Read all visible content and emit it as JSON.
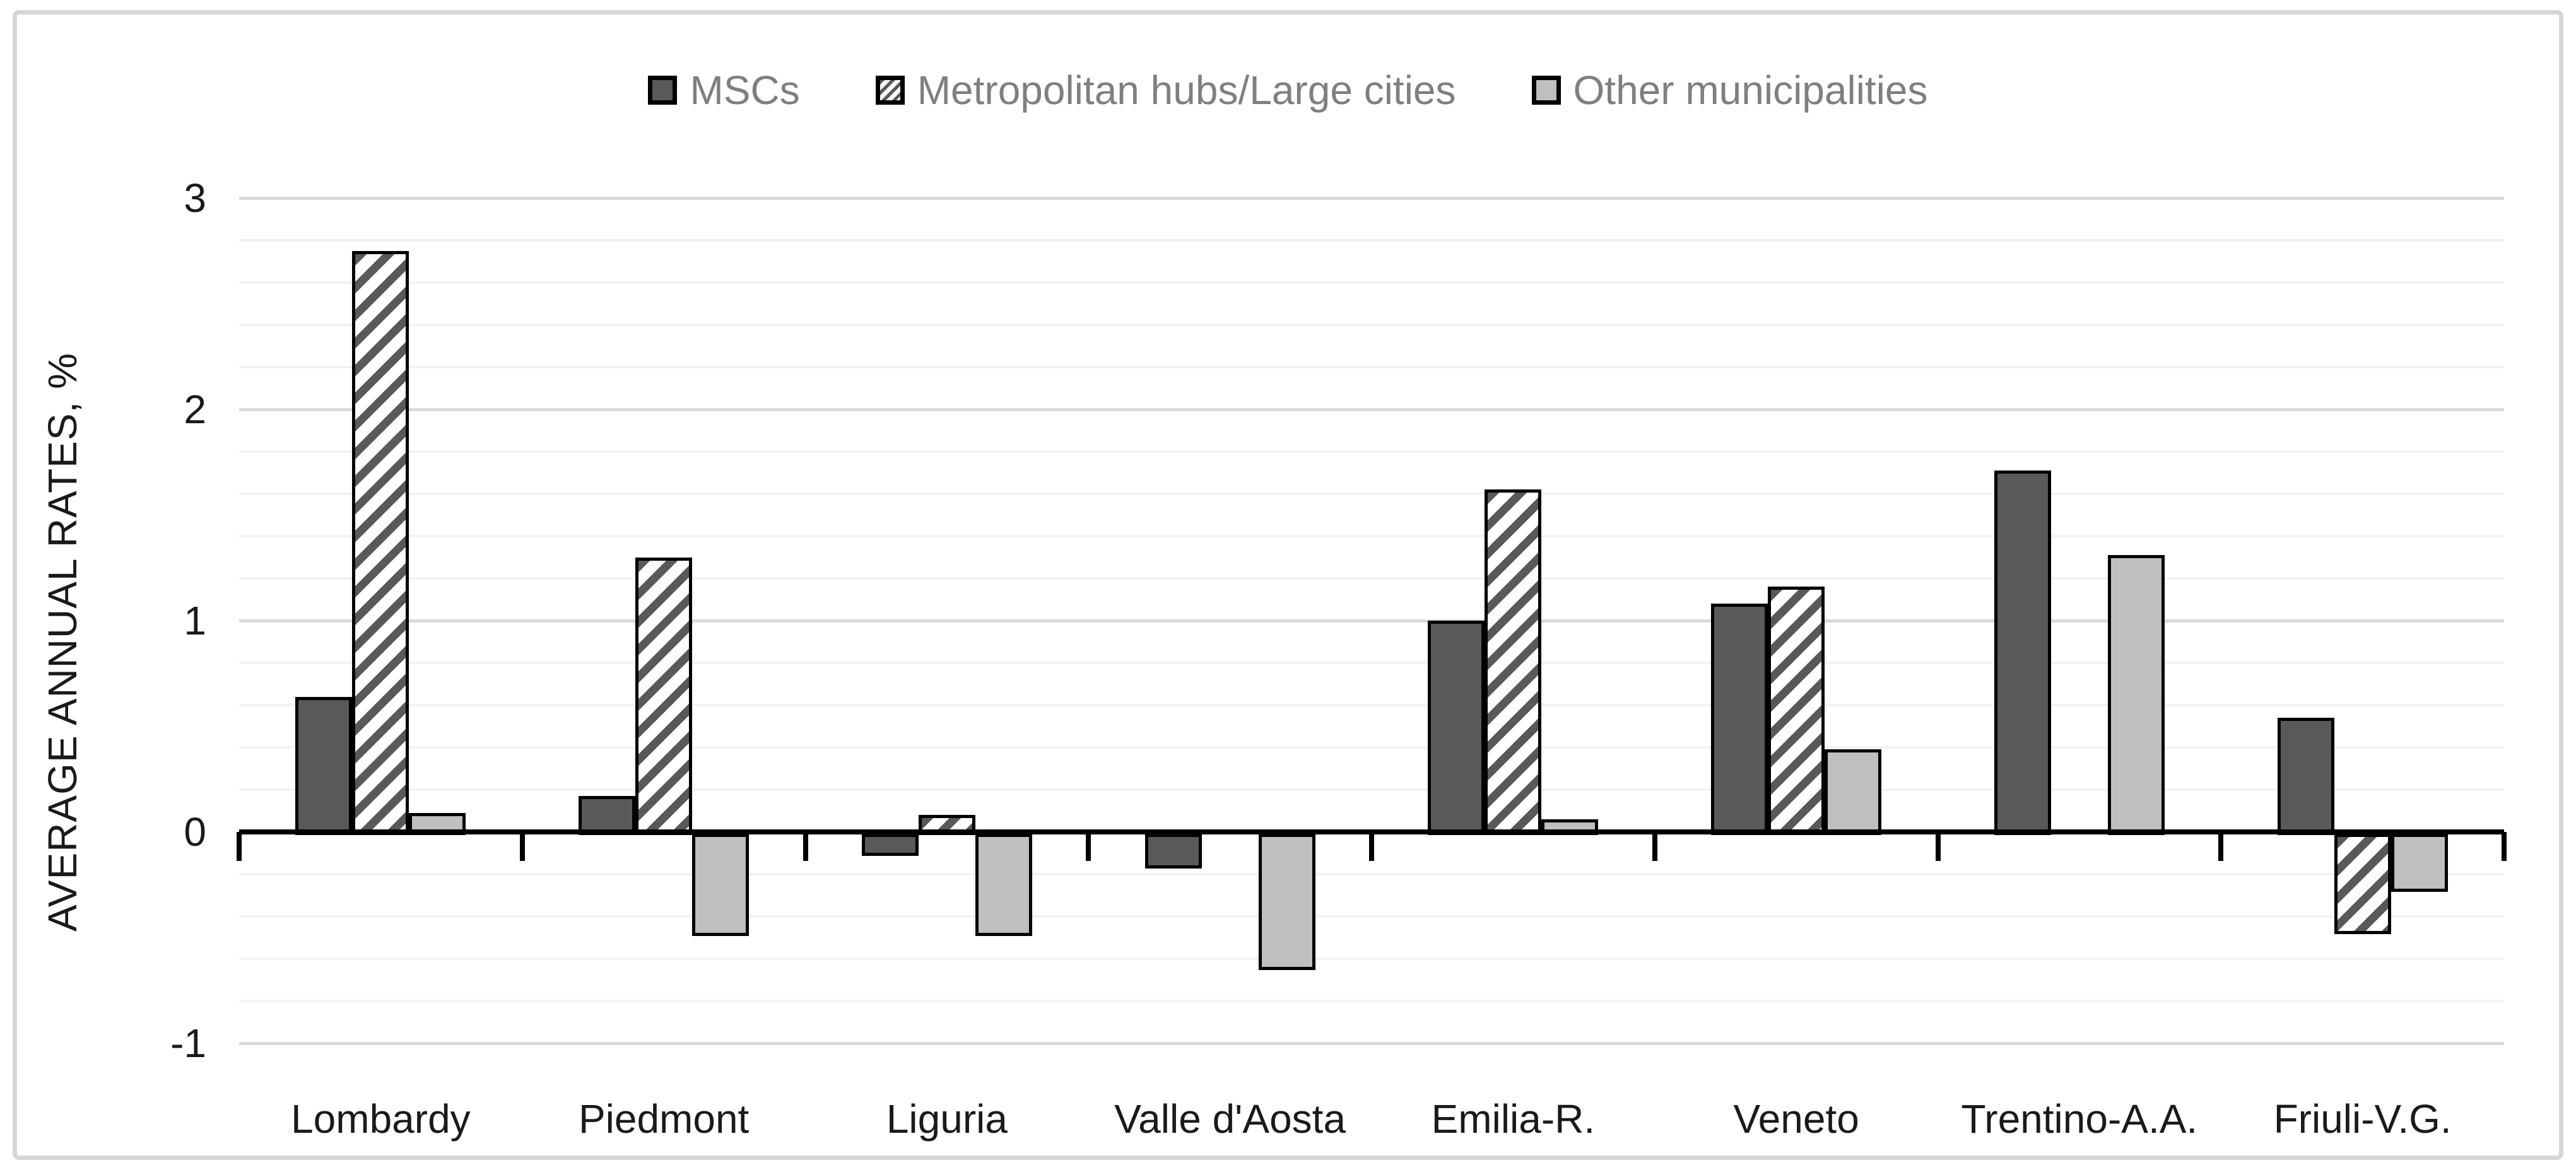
{
  "figure": {
    "background": "#ffffff",
    "border_color": "#d6d6d6"
  },
  "legend": {
    "text_color": "#7f7f7f",
    "items": [
      {
        "label": "MSCs",
        "swatch": "solid-dark",
        "color": "#595959"
      },
      {
        "label": "Metropolitan hubs/Large cities",
        "swatch": "hatch",
        "color": "#595959"
      },
      {
        "label": "Other municipalities",
        "swatch": "solid-light",
        "color": "#bfbfbf"
      }
    ]
  },
  "y_axis": {
    "title": "AVERAGE ANNUAL RATES, %",
    "tick_labels": [
      "3",
      "2",
      "1",
      "0",
      "-1"
    ],
    "tick_values": [
      3,
      2,
      1,
      0,
      -1
    ],
    "minor_step": 0.2,
    "range_min": -1.2,
    "range_max": 3.2,
    "minor_grid_color": "#f2f2f2",
    "major_grid_color": "#dadada"
  },
  "chart_data": {
    "type": "bar",
    "title": "",
    "xlabel": "",
    "ylabel": "AVERAGE ANNUAL RATES, %",
    "ylim": [
      -1.2,
      3.2
    ],
    "grid": "horizontal, minor every 0.2, major at integers",
    "legend_position": "top-center",
    "categories": [
      "Lombardy",
      "Piedmont",
      "Liguria",
      "Valle d'Aosta",
      "Emilia-R.",
      "Veneto",
      "Trentino-A.A.",
      "Friuli-V.G."
    ],
    "series": [
      {
        "name": "MSCs",
        "pattern": "solid",
        "fill": "#595959",
        "values": [
          0.64,
          0.17,
          -0.09,
          -0.15,
          1.0,
          1.08,
          1.71,
          0.54
        ]
      },
      {
        "name": "Metropolitan hubs/Large cities",
        "pattern": "diagonal-hatch",
        "fill": "#ffffff",
        "hatch_color": "#595959",
        "values": [
          2.75,
          1.3,
          0.08,
          0,
          1.62,
          1.16,
          0,
          -0.46
        ]
      },
      {
        "name": "Other municipalities",
        "pattern": "solid",
        "fill": "#bfbfbf",
        "values": [
          0.09,
          -0.47,
          -0.47,
          -0.63,
          0.06,
          0.39,
          1.31,
          -0.26
        ]
      }
    ],
    "note": "zero values render no bar (missing bar for Valle d'Aosta and Trentino-A.A. hatched series)"
  }
}
